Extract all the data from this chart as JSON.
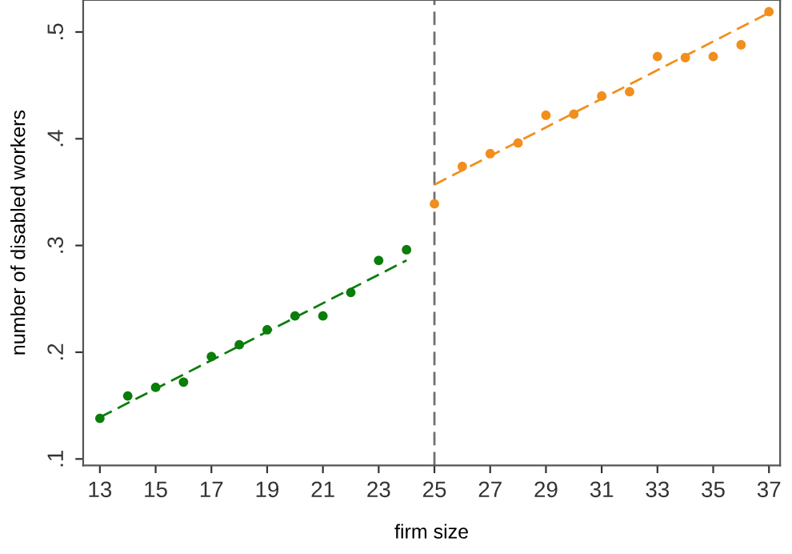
{
  "chart_data": {
    "type": "scatter",
    "xlabel": "firm size",
    "ylabel": "number of disabled workers",
    "xlim": [
      12.4,
      37.4
    ],
    "ylim": [
      0.094,
      0.53
    ],
    "xticks": [
      13,
      15,
      17,
      19,
      21,
      23,
      25,
      27,
      29,
      31,
      33,
      35,
      37
    ],
    "yticks": [
      {
        "value": 0.1,
        "label": ".1"
      },
      {
        "value": 0.2,
        "label": ".2"
      },
      {
        "value": 0.3,
        "label": ".3"
      },
      {
        "value": 0.4,
        "label": ".4"
      },
      {
        "value": 0.5,
        "label": ".5"
      }
    ],
    "grid": false,
    "legend": false,
    "marker": "circle",
    "series": [
      {
        "color": "#0a7d0a",
        "x": [
          13,
          14,
          15,
          16,
          17,
          18,
          19,
          20,
          21,
          22,
          23,
          24
        ],
        "values": [
          0.138,
          0.159,
          0.167,
          0.172,
          0.196,
          0.207,
          0.221,
          0.234,
          0.234,
          0.256,
          0.286,
          0.296
        ]
      },
      {
        "color": "#f28e1c",
        "x": [
          25,
          26,
          27,
          28,
          29,
          30,
          31,
          32,
          33,
          34,
          35,
          36,
          37
        ],
        "values": [
          0.339,
          0.374,
          0.386,
          0.396,
          0.422,
          0.423,
          0.44,
          0.444,
          0.477,
          0.476,
          0.477,
          0.488,
          0.519
        ]
      },
      {
        "type": "line",
        "line_style": "dashed",
        "marker": "none",
        "color": "#0a7d0a",
        "x": [
          13,
          24
        ],
        "values": [
          0.139,
          0.286
        ]
      },
      {
        "type": "line",
        "line_style": "dashed",
        "marker": "none",
        "color": "#f28e1c",
        "x": [
          25,
          37
        ],
        "values": [
          0.357,
          0.518
        ]
      }
    ],
    "ref_lines": [
      {
        "axis": "x",
        "value": 25,
        "color": "#707070",
        "line_style": "dashed"
      }
    ]
  }
}
